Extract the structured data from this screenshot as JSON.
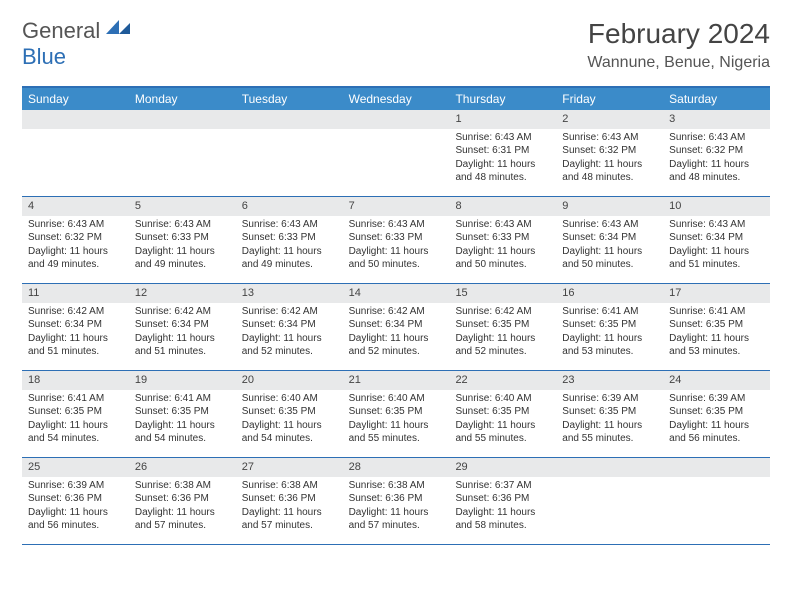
{
  "logo": {
    "text1": "General",
    "text2": "Blue"
  },
  "title": "February 2024",
  "location": "Wannune, Benue, Nigeria",
  "colors": {
    "header_bg": "#3b8bc9",
    "header_text": "#ffffff",
    "border": "#2d6fb5",
    "daynum_bg": "#e8e9ea",
    "text": "#333333",
    "logo_gray": "#555555",
    "logo_blue": "#2d6fb5"
  },
  "day_names": [
    "Sunday",
    "Monday",
    "Tuesday",
    "Wednesday",
    "Thursday",
    "Friday",
    "Saturday"
  ],
  "weeks": [
    [
      {
        "empty": true
      },
      {
        "empty": true
      },
      {
        "empty": true
      },
      {
        "empty": true
      },
      {
        "num": "1",
        "sunrise": "Sunrise: 6:43 AM",
        "sunset": "Sunset: 6:31 PM",
        "daylight": "Daylight: 11 hours and 48 minutes."
      },
      {
        "num": "2",
        "sunrise": "Sunrise: 6:43 AM",
        "sunset": "Sunset: 6:32 PM",
        "daylight": "Daylight: 11 hours and 48 minutes."
      },
      {
        "num": "3",
        "sunrise": "Sunrise: 6:43 AM",
        "sunset": "Sunset: 6:32 PM",
        "daylight": "Daylight: 11 hours and 48 minutes."
      }
    ],
    [
      {
        "num": "4",
        "sunrise": "Sunrise: 6:43 AM",
        "sunset": "Sunset: 6:32 PM",
        "daylight": "Daylight: 11 hours and 49 minutes."
      },
      {
        "num": "5",
        "sunrise": "Sunrise: 6:43 AM",
        "sunset": "Sunset: 6:33 PM",
        "daylight": "Daylight: 11 hours and 49 minutes."
      },
      {
        "num": "6",
        "sunrise": "Sunrise: 6:43 AM",
        "sunset": "Sunset: 6:33 PM",
        "daylight": "Daylight: 11 hours and 49 minutes."
      },
      {
        "num": "7",
        "sunrise": "Sunrise: 6:43 AM",
        "sunset": "Sunset: 6:33 PM",
        "daylight": "Daylight: 11 hours and 50 minutes."
      },
      {
        "num": "8",
        "sunrise": "Sunrise: 6:43 AM",
        "sunset": "Sunset: 6:33 PM",
        "daylight": "Daylight: 11 hours and 50 minutes."
      },
      {
        "num": "9",
        "sunrise": "Sunrise: 6:43 AM",
        "sunset": "Sunset: 6:34 PM",
        "daylight": "Daylight: 11 hours and 50 minutes."
      },
      {
        "num": "10",
        "sunrise": "Sunrise: 6:43 AM",
        "sunset": "Sunset: 6:34 PM",
        "daylight": "Daylight: 11 hours and 51 minutes."
      }
    ],
    [
      {
        "num": "11",
        "sunrise": "Sunrise: 6:42 AM",
        "sunset": "Sunset: 6:34 PM",
        "daylight": "Daylight: 11 hours and 51 minutes."
      },
      {
        "num": "12",
        "sunrise": "Sunrise: 6:42 AM",
        "sunset": "Sunset: 6:34 PM",
        "daylight": "Daylight: 11 hours and 51 minutes."
      },
      {
        "num": "13",
        "sunrise": "Sunrise: 6:42 AM",
        "sunset": "Sunset: 6:34 PM",
        "daylight": "Daylight: 11 hours and 52 minutes."
      },
      {
        "num": "14",
        "sunrise": "Sunrise: 6:42 AM",
        "sunset": "Sunset: 6:34 PM",
        "daylight": "Daylight: 11 hours and 52 minutes."
      },
      {
        "num": "15",
        "sunrise": "Sunrise: 6:42 AM",
        "sunset": "Sunset: 6:35 PM",
        "daylight": "Daylight: 11 hours and 52 minutes."
      },
      {
        "num": "16",
        "sunrise": "Sunrise: 6:41 AM",
        "sunset": "Sunset: 6:35 PM",
        "daylight": "Daylight: 11 hours and 53 minutes."
      },
      {
        "num": "17",
        "sunrise": "Sunrise: 6:41 AM",
        "sunset": "Sunset: 6:35 PM",
        "daylight": "Daylight: 11 hours and 53 minutes."
      }
    ],
    [
      {
        "num": "18",
        "sunrise": "Sunrise: 6:41 AM",
        "sunset": "Sunset: 6:35 PM",
        "daylight": "Daylight: 11 hours and 54 minutes."
      },
      {
        "num": "19",
        "sunrise": "Sunrise: 6:41 AM",
        "sunset": "Sunset: 6:35 PM",
        "daylight": "Daylight: 11 hours and 54 minutes."
      },
      {
        "num": "20",
        "sunrise": "Sunrise: 6:40 AM",
        "sunset": "Sunset: 6:35 PM",
        "daylight": "Daylight: 11 hours and 54 minutes."
      },
      {
        "num": "21",
        "sunrise": "Sunrise: 6:40 AM",
        "sunset": "Sunset: 6:35 PM",
        "daylight": "Daylight: 11 hours and 55 minutes."
      },
      {
        "num": "22",
        "sunrise": "Sunrise: 6:40 AM",
        "sunset": "Sunset: 6:35 PM",
        "daylight": "Daylight: 11 hours and 55 minutes."
      },
      {
        "num": "23",
        "sunrise": "Sunrise: 6:39 AM",
        "sunset": "Sunset: 6:35 PM",
        "daylight": "Daylight: 11 hours and 55 minutes."
      },
      {
        "num": "24",
        "sunrise": "Sunrise: 6:39 AM",
        "sunset": "Sunset: 6:35 PM",
        "daylight": "Daylight: 11 hours and 56 minutes."
      }
    ],
    [
      {
        "num": "25",
        "sunrise": "Sunrise: 6:39 AM",
        "sunset": "Sunset: 6:36 PM",
        "daylight": "Daylight: 11 hours and 56 minutes."
      },
      {
        "num": "26",
        "sunrise": "Sunrise: 6:38 AM",
        "sunset": "Sunset: 6:36 PM",
        "daylight": "Daylight: 11 hours and 57 minutes."
      },
      {
        "num": "27",
        "sunrise": "Sunrise: 6:38 AM",
        "sunset": "Sunset: 6:36 PM",
        "daylight": "Daylight: 11 hours and 57 minutes."
      },
      {
        "num": "28",
        "sunrise": "Sunrise: 6:38 AM",
        "sunset": "Sunset: 6:36 PM",
        "daylight": "Daylight: 11 hours and 57 minutes."
      },
      {
        "num": "29",
        "sunrise": "Sunrise: 6:37 AM",
        "sunset": "Sunset: 6:36 PM",
        "daylight": "Daylight: 11 hours and 58 minutes."
      },
      {
        "empty": true
      },
      {
        "empty": true
      }
    ]
  ]
}
